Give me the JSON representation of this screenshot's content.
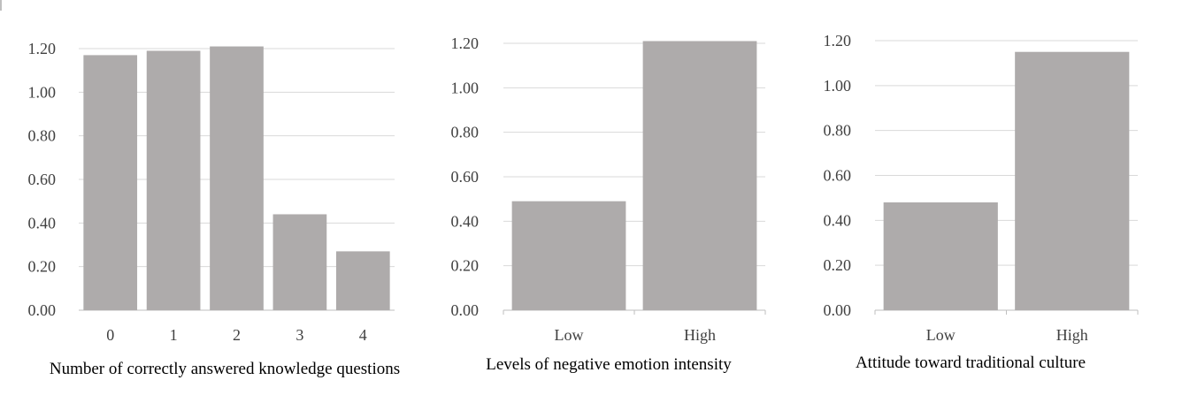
{
  "chart_data": [
    {
      "type": "bar",
      "categories": [
        "0",
        "1",
        "2",
        "3",
        "4"
      ],
      "values": [
        1.17,
        1.19,
        1.21,
        0.44,
        0.27
      ],
      "xlabel": "Number of correctly answered knowledge questions",
      "ylabel": "",
      "ylim": [
        0,
        1.2
      ],
      "yticks": [
        "0.00",
        "0.20",
        "0.40",
        "0.60",
        "0.80",
        "1.00",
        "1.20"
      ],
      "grid": true,
      "bar_color": "#aeabab"
    },
    {
      "type": "bar",
      "categories": [
        "Low",
        "High"
      ],
      "values": [
        0.49,
        1.21
      ],
      "xlabel": "Levels of negative emotion intensity",
      "ylabel": "",
      "ylim": [
        0,
        1.2
      ],
      "yticks": [
        "0.00",
        "0.20",
        "0.40",
        "0.60",
        "0.80",
        "1.00",
        "1.20"
      ],
      "grid": true,
      "bar_color": "#aeabab"
    },
    {
      "type": "bar",
      "categories": [
        "Low",
        "High"
      ],
      "values": [
        0.48,
        1.15
      ],
      "xlabel": "Attitude toward traditional culture",
      "ylabel": "",
      "ylim": [
        0,
        1.2
      ],
      "yticks": [
        "0.00",
        "0.20",
        "0.40",
        "0.60",
        "0.80",
        "1.00",
        "1.20"
      ],
      "grid": true,
      "bar_color": "#aeabab"
    }
  ]
}
